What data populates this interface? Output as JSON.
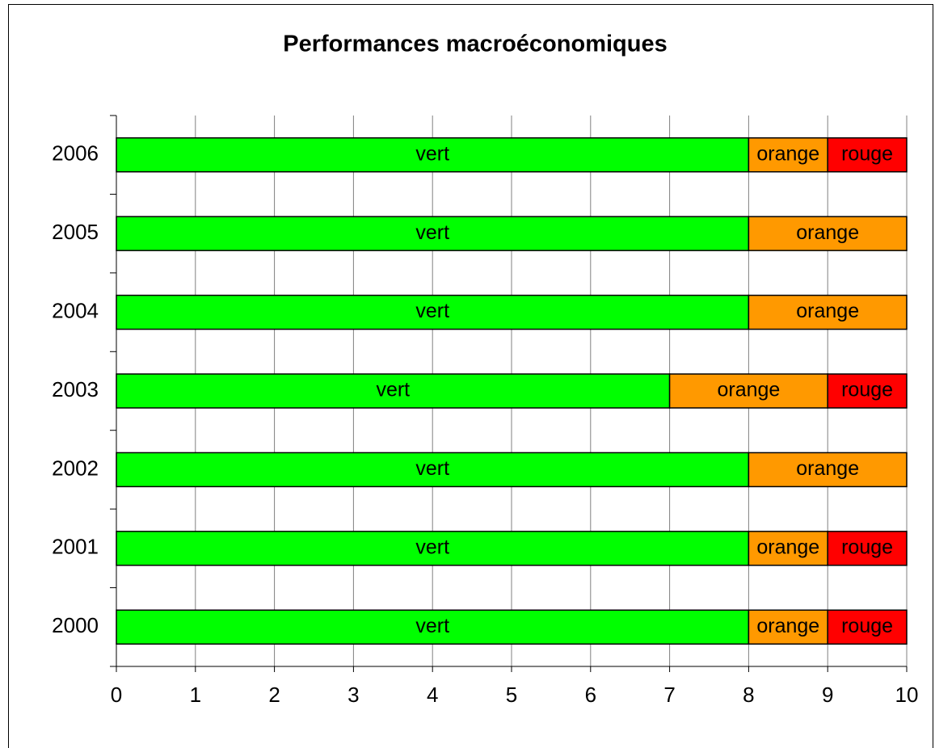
{
  "chart_data": {
    "type": "stacked-bar-horizontal",
    "title": "Performances macroéconomiques",
    "categories": [
      "2000",
      "2001",
      "2002",
      "2003",
      "2004",
      "2005",
      "2006"
    ],
    "series": [
      {
        "name": "vert",
        "color": "#00ff00",
        "values": [
          8,
          8,
          8,
          7,
          8,
          8,
          8
        ]
      },
      {
        "name": "orange",
        "color": "#ff9900",
        "values": [
          1,
          1,
          2,
          2,
          2,
          2,
          1
        ]
      },
      {
        "name": "rouge",
        "color": "#ff0000",
        "values": [
          1,
          1,
          0,
          1,
          0,
          0,
          1
        ]
      }
    ],
    "xlim": [
      0,
      10
    ],
    "xticks": [
      0,
      1,
      2,
      3,
      4,
      5,
      6,
      7,
      8,
      9,
      10
    ],
    "grid": true
  }
}
